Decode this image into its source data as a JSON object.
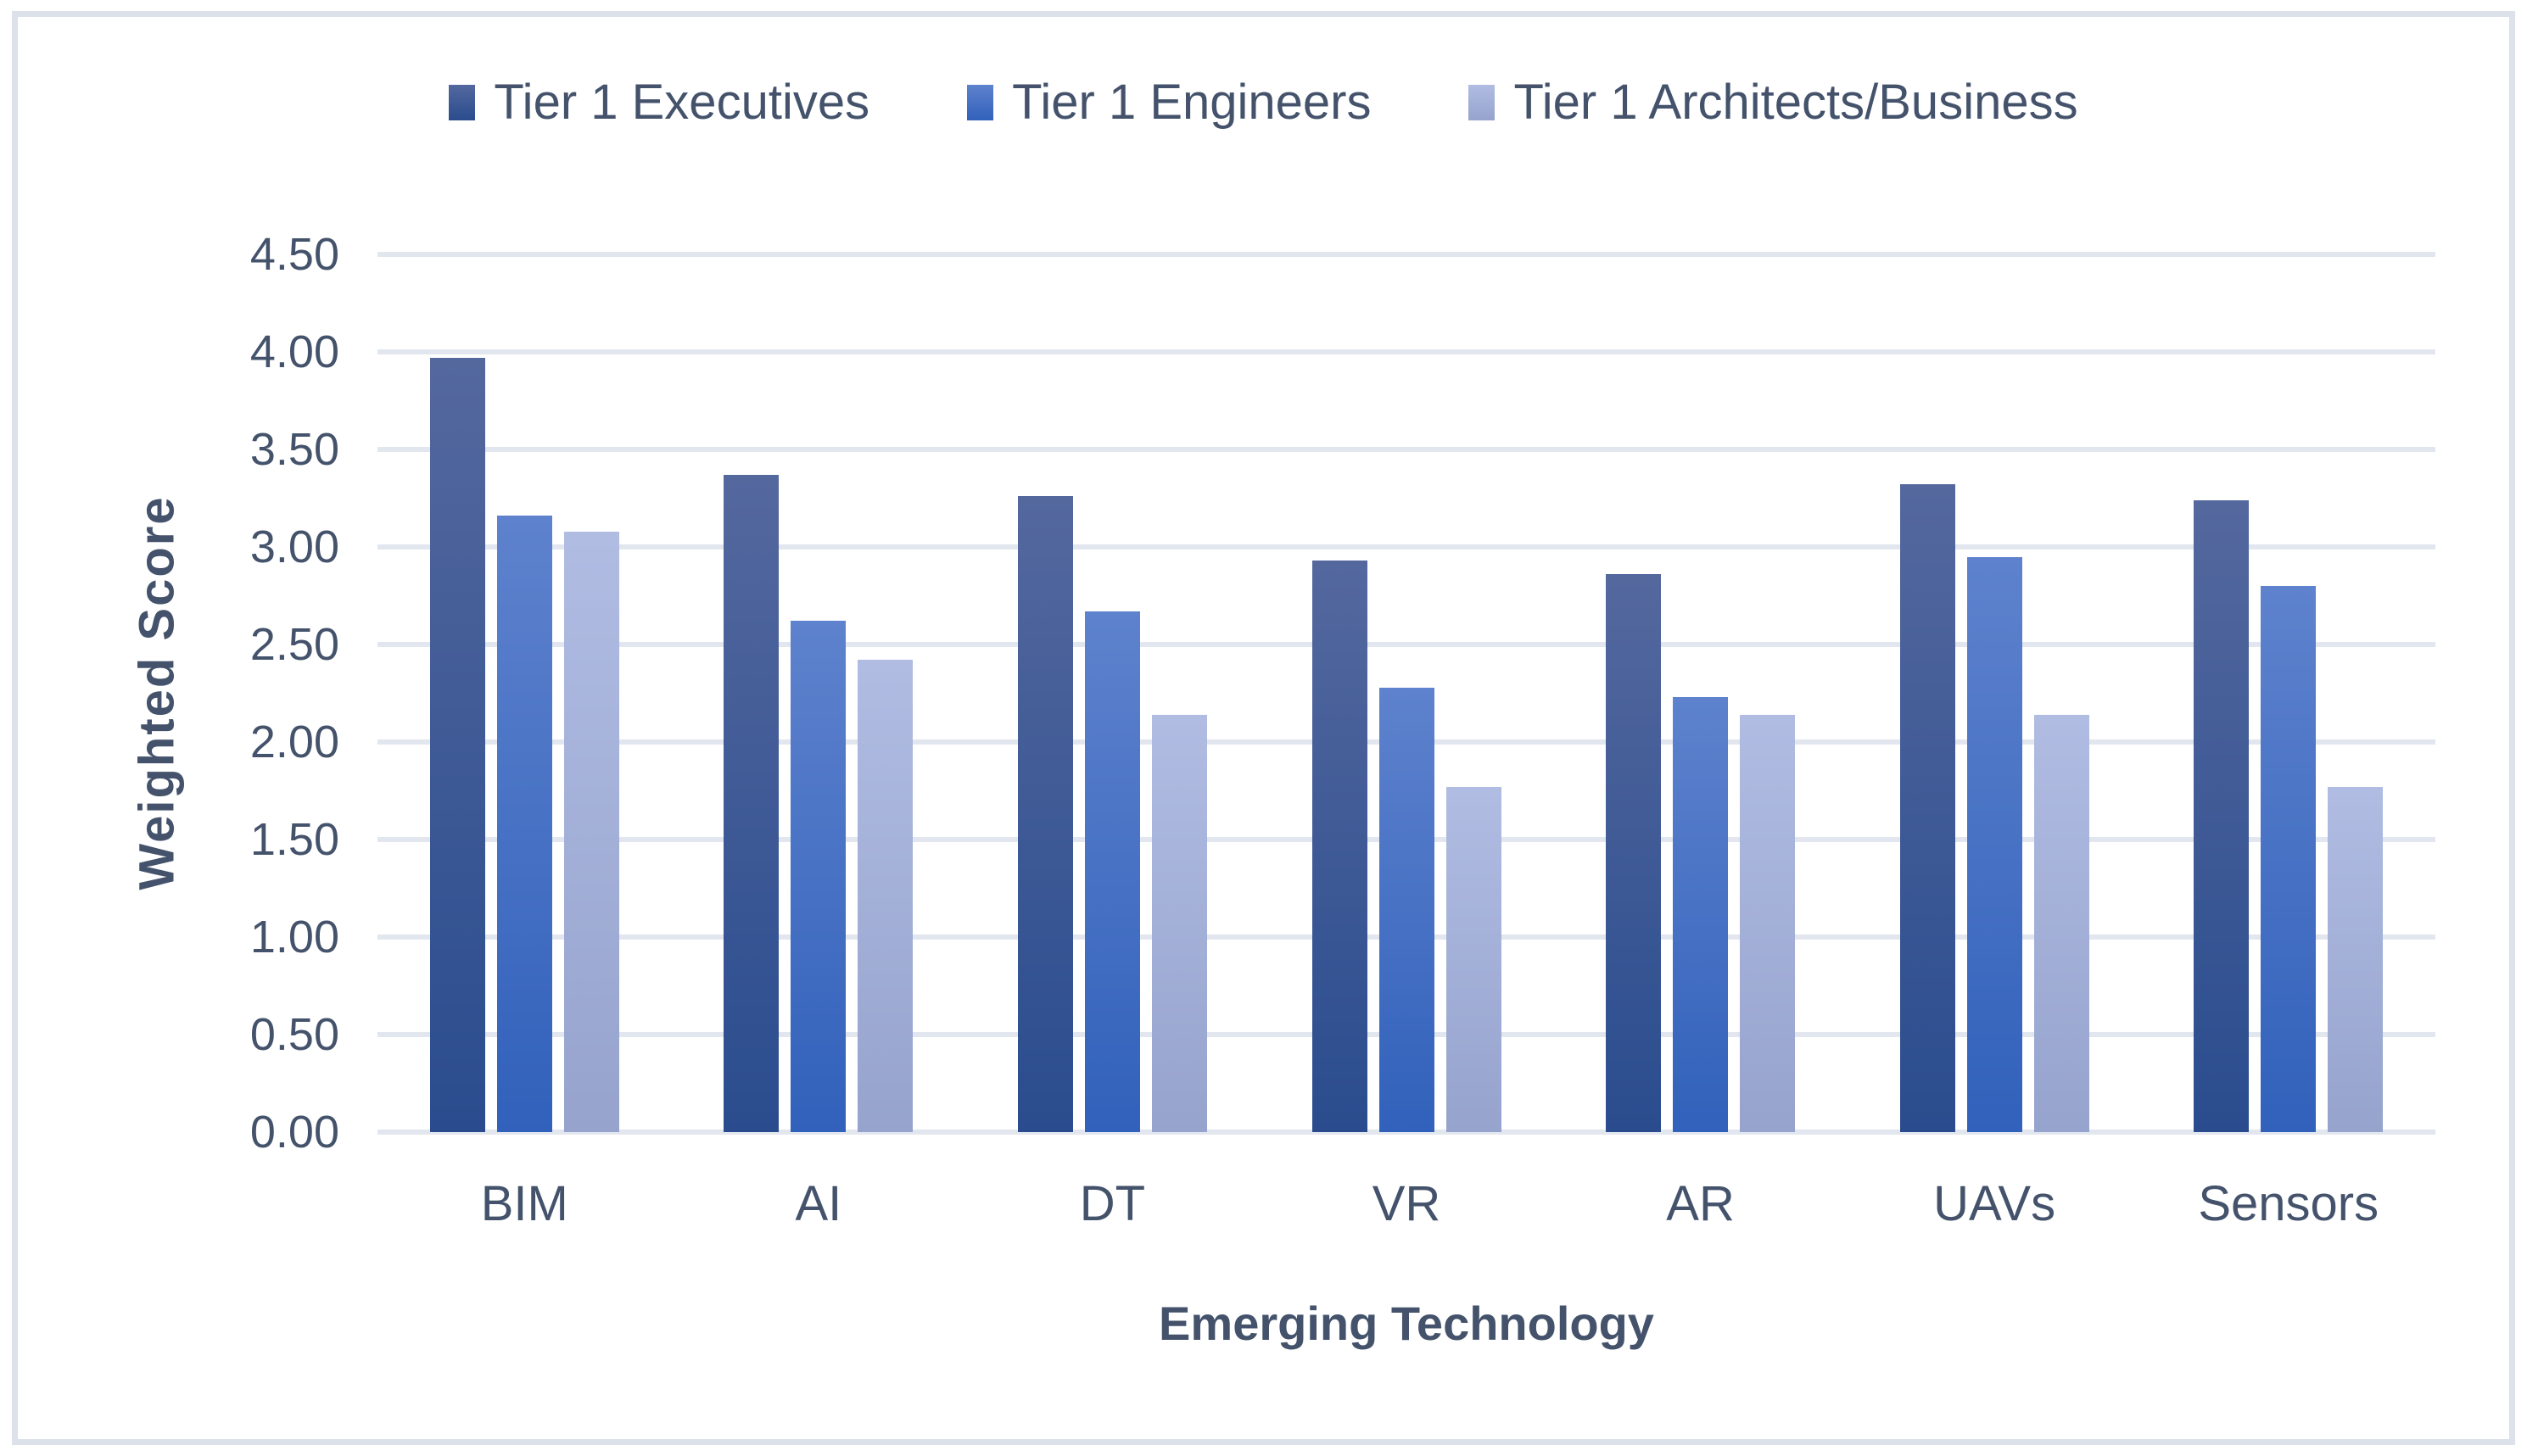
{
  "chart_data": {
    "type": "bar",
    "title": "",
    "categories": [
      "BIM",
      "AI",
      "DT",
      "VR",
      "AR",
      "UAVs",
      "Sensors"
    ],
    "series": [
      {
        "name": "Tier 1 Executives",
        "values": [
          3.97,
          3.37,
          3.26,
          2.93,
          2.86,
          3.32,
          3.24
        ],
        "color_top": "#54689E",
        "color_bottom": "#2A4C8E"
      },
      {
        "name": "Tier 1 Engineers",
        "values": [
          3.16,
          2.62,
          2.67,
          2.28,
          2.23,
          2.95,
          2.8
        ],
        "color_top": "#5E82CD",
        "color_bottom": "#3161BB"
      },
      {
        "name": "Tier 1 Architects/Business",
        "values": [
          3.08,
          2.42,
          2.14,
          1.77,
          2.14,
          2.14,
          1.77
        ],
        "color_top": "#B0BCE2",
        "color_bottom": "#96A3CD"
      }
    ],
    "xlabel": "Emerging Technology",
    "ylabel": "Weighted Score",
    "ylim": [
      0,
      4.5
    ],
    "ytick_step": 0.5,
    "ytick_labels": [
      "0.00",
      "0.50",
      "1.00",
      "1.50",
      "2.00",
      "2.50",
      "3.00",
      "3.50",
      "4.00",
      "4.50"
    ],
    "grid": true,
    "legend_position": "top"
  },
  "colors": {
    "text": "#44536B",
    "gridline": "#E2E6EE",
    "frame_border": "#DCE1EA",
    "background": "#FFFFFF"
  }
}
